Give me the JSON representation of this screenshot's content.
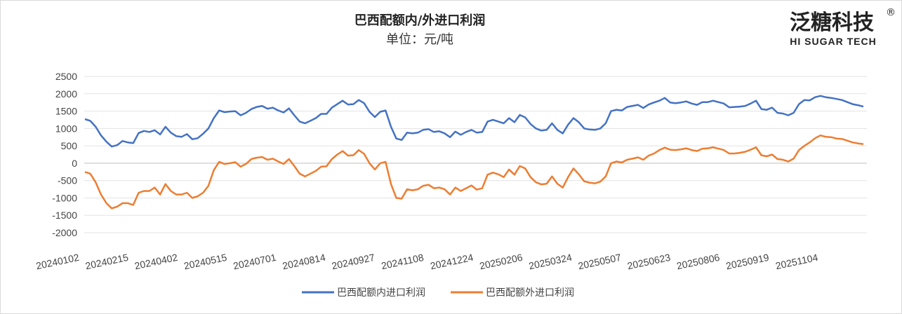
{
  "chart_data": {
    "type": "line",
    "title": "巴西配额内/外进口利润",
    "subtitle": "单位：元/吨",
    "ylim": [
      -2000,
      2500
    ],
    "yticks": [
      2500,
      2000,
      1500,
      1000,
      500,
      0,
      -500,
      -1000,
      -1500,
      -2000
    ],
    "x_tick_labels": [
      "20240102",
      "20240215",
      "20240402",
      "20240515",
      "20240701",
      "20240814",
      "20240927",
      "20241108",
      "20241224",
      "20250206",
      "20250324",
      "20250507",
      "20250623",
      "20250806",
      "20250919",
      "20251104"
    ],
    "grid": true,
    "legend_position": "bottom",
    "series": [
      {
        "name": "巴西配额内进口利润",
        "color": "#4472C4",
        "values": [
          1270,
          1220,
          1050,
          800,
          620,
          480,
          520,
          640,
          600,
          580,
          870,
          930,
          900,
          950,
          830,
          1050,
          880,
          780,
          760,
          840,
          690,
          720,
          850,
          1000,
          1300,
          1520,
          1470,
          1490,
          1500,
          1380,
          1450,
          1560,
          1620,
          1650,
          1570,
          1600,
          1520,
          1460,
          1580,
          1380,
          1200,
          1150,
          1220,
          1300,
          1420,
          1420,
          1600,
          1700,
          1800,
          1690,
          1700,
          1820,
          1730,
          1480,
          1330,
          1480,
          1520,
          1050,
          710,
          670,
          880,
          860,
          880,
          960,
          980,
          900,
          920,
          860,
          750,
          910,
          820,
          900,
          960,
          880,
          900,
          1200,
          1250,
          1200,
          1150,
          1300,
          1180,
          1390,
          1320,
          1130,
          1000,
          940,
          960,
          1150,
          960,
          860,
          1110,
          1300,
          1180,
          1000,
          970,
          960,
          1000,
          1150,
          1500,
          1540,
          1520,
          1620,
          1650,
          1680,
          1590,
          1690,
          1750,
          1800,
          1880,
          1750,
          1730,
          1750,
          1780,
          1720,
          1680,
          1760,
          1760,
          1800,
          1760,
          1720,
          1610,
          1620,
          1630,
          1650,
          1720,
          1800,
          1560,
          1540,
          1600,
          1450,
          1430,
          1380,
          1450,
          1700,
          1820,
          1810,
          1900,
          1940,
          1900,
          1880,
          1850,
          1820,
          1760,
          1700,
          1670,
          1630
        ]
      },
      {
        "name": "巴西配额外进口利润",
        "color": "#ED7D31",
        "values": [
          -250,
          -300,
          -550,
          -900,
          -1150,
          -1300,
          -1250,
          -1150,
          -1150,
          -1200,
          -850,
          -800,
          -800,
          -700,
          -900,
          -600,
          -800,
          -900,
          -900,
          -850,
          -1000,
          -950,
          -850,
          -650,
          -200,
          40,
          -20,
          0,
          30,
          -100,
          -20,
          120,
          160,
          180,
          100,
          130,
          50,
          -20,
          120,
          -80,
          -300,
          -380,
          -300,
          -220,
          -100,
          -90,
          120,
          250,
          350,
          220,
          230,
          380,
          270,
          0,
          -180,
          0,
          40,
          -600,
          -1000,
          -1020,
          -750,
          -780,
          -750,
          -650,
          -620,
          -720,
          -700,
          -750,
          -900,
          -700,
          -800,
          -720,
          -640,
          -760,
          -720,
          -330,
          -270,
          -320,
          -400,
          -180,
          -330,
          -80,
          -150,
          -400,
          -550,
          -610,
          -590,
          -380,
          -590,
          -700,
          -400,
          -150,
          -320,
          -520,
          -560,
          -580,
          -530,
          -380,
          0,
          50,
          20,
          100,
          130,
          170,
          100,
          220,
          280,
          380,
          450,
          390,
          380,
          400,
          430,
          380,
          350,
          420,
          430,
          460,
          420,
          380,
          280,
          280,
          300,
          330,
          390,
          460,
          230,
          200,
          250,
          120,
          100,
          50,
          130,
          380,
          500,
          600,
          720,
          800,
          760,
          750,
          710,
          700,
          650,
          600,
          570,
          550
        ]
      }
    ]
  },
  "logo": {
    "cn": "泛糖科技",
    "en": "HI SUGAR TECH",
    "mark": "®"
  }
}
